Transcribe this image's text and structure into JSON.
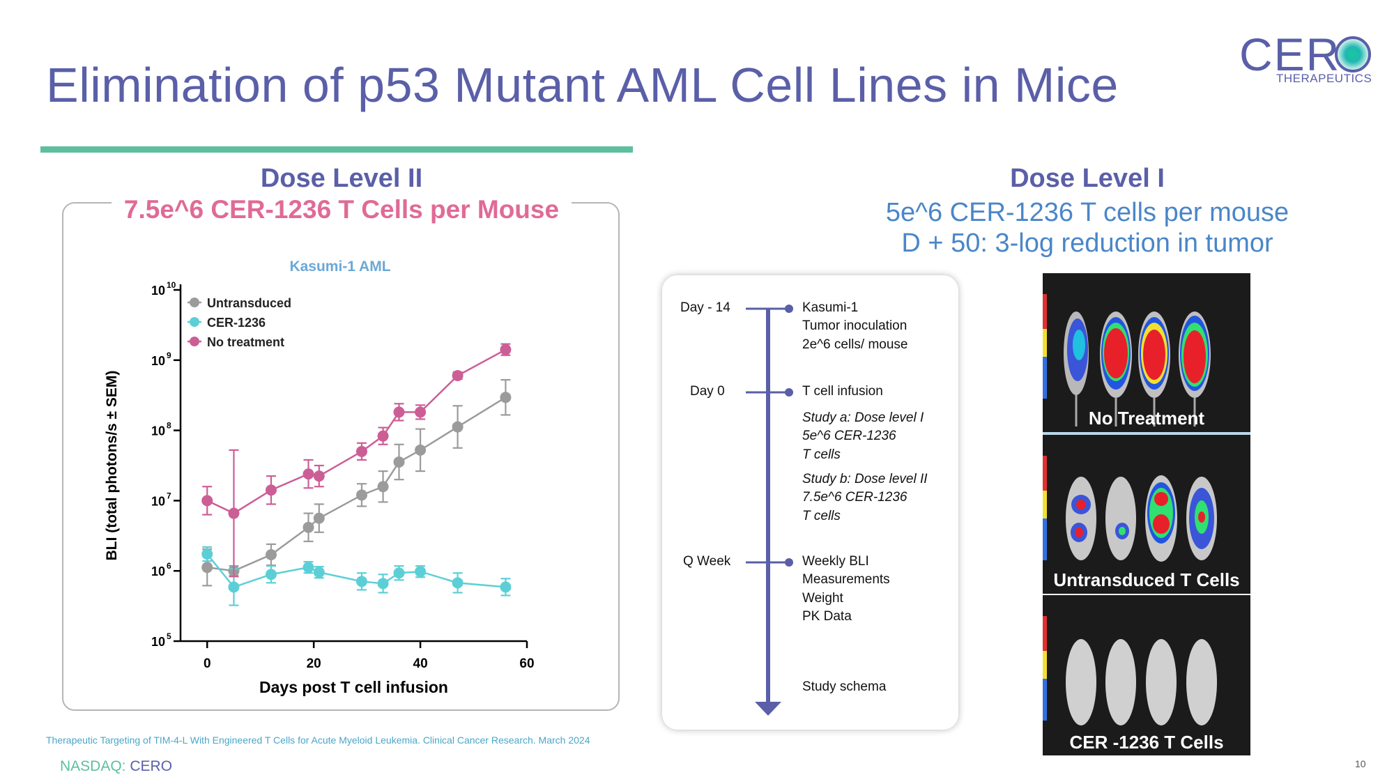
{
  "slide": {
    "title": "Elimination of p53 Mutant AML Cell Lines in Mice",
    "page_number": "10",
    "citation": "Therapeutic Targeting of TIM-4-L With Engineered T Cells for Acute Myeloid Leukemia. Clinical Cancer Research. March 2024",
    "footer_exchange": "NASDAQ: ",
    "footer_ticker": "CERO",
    "logo_word": "CER",
    "logo_sub": "THERAPEUTICS"
  },
  "left": {
    "heading": "Dose Level II",
    "subheading": "7.5e^6 CER-1236 T Cells per Mouse"
  },
  "right": {
    "heading": "Dose Level I",
    "subheading_1": "5e^6 CER-1236 T cells per mouse",
    "subheading_2": "D + 50: 3-log reduction in tumor"
  },
  "schema": {
    "day_m14": "Day - 14",
    "day_0": "Day  0",
    "q_week": "Q Week",
    "kasumi": "Kasumi-1",
    "tumor_inoculation": "Tumor inoculation",
    "cells_per_mouse": "2e^6 cells/ mouse",
    "t_cell_infusion": "T cell infusion",
    "study_a_1": "Study a: Dose level I",
    "study_a_2": "5e^6 CER-1236",
    "study_a_3": "T cells",
    "study_b_1": "Study b: Dose level II",
    "study_b_2": "7.5e^6 CER-1236",
    "study_b_3": "T cells",
    "weekly_bli": "Weekly BLI",
    "measurements": "Measurements",
    "weight": "Weight",
    "pk_data": "PK Data",
    "study_schema": "Study schema"
  },
  "imaging": {
    "panel_1": "No Treatment",
    "panel_2": "Untransduced T Cells",
    "panel_3": "CER -1236 T Cells"
  },
  "colors": {
    "title": "#5a5fa8",
    "accent_bar": "#5dbf9e",
    "pink": "#e06a96",
    "blue_text": "#4a86c8",
    "untransduced": "#9b9b9b",
    "cer1236": "#5ccfd6",
    "no_treatment": "#cc5e96",
    "axis_marker": "#5a5fa8"
  },
  "chart_data": {
    "type": "line",
    "title": "Kasumi-1 AML",
    "xlabel": "Days post T cell infusion",
    "ylabel": "BLI (total photons/s ± SEM)",
    "y_scale": "log10",
    "xlim": [
      -5,
      60
    ],
    "ylim_exp": [
      5,
      10
    ],
    "x_ticks": [
      0,
      20,
      40,
      60
    ],
    "y_tick_exps": [
      5,
      6,
      7,
      8,
      9,
      10
    ],
    "legend_position": "top-left",
    "series": [
      {
        "name": "Untransduced",
        "color": "#9b9b9b",
        "x": [
          0,
          5,
          12,
          19,
          21,
          29,
          33,
          36,
          40,
          47,
          56
        ],
        "log10_y": [
          6.05,
          6.0,
          6.23,
          6.62,
          6.75,
          7.08,
          7.2,
          7.55,
          7.72,
          8.05,
          8.47
        ],
        "err": [
          0.26,
          0.07,
          0.15,
          0.2,
          0.2,
          0.16,
          0.22,
          0.25,
          0.3,
          0.3,
          0.25
        ]
      },
      {
        "name": "CER-1236",
        "color": "#5ccfd6",
        "x": [
          0,
          5,
          12,
          19,
          21,
          29,
          33,
          36,
          40,
          47,
          56
        ],
        "log10_y": [
          6.24,
          5.77,
          5.95,
          6.05,
          5.98,
          5.85,
          5.82,
          5.97,
          5.99,
          5.83,
          5.77
        ],
        "err": [
          0.1,
          0.26,
          0.12,
          0.08,
          0.08,
          0.12,
          0.13,
          0.1,
          0.08,
          0.14,
          0.12
        ]
      },
      {
        "name": "No treatment",
        "color": "#cc5e96",
        "x": [
          0,
          5,
          12,
          19,
          21,
          29,
          33,
          36,
          40,
          47,
          56
        ],
        "log10_y": [
          7.0,
          6.82,
          7.15,
          7.38,
          7.35,
          7.7,
          7.92,
          8.26,
          8.26,
          8.78,
          9.15
        ],
        "err": [
          0.2,
          0.9,
          0.2,
          0.2,
          0.15,
          0.12,
          0.12,
          0.12,
          0.1,
          0.05,
          0.08
        ]
      }
    ]
  }
}
